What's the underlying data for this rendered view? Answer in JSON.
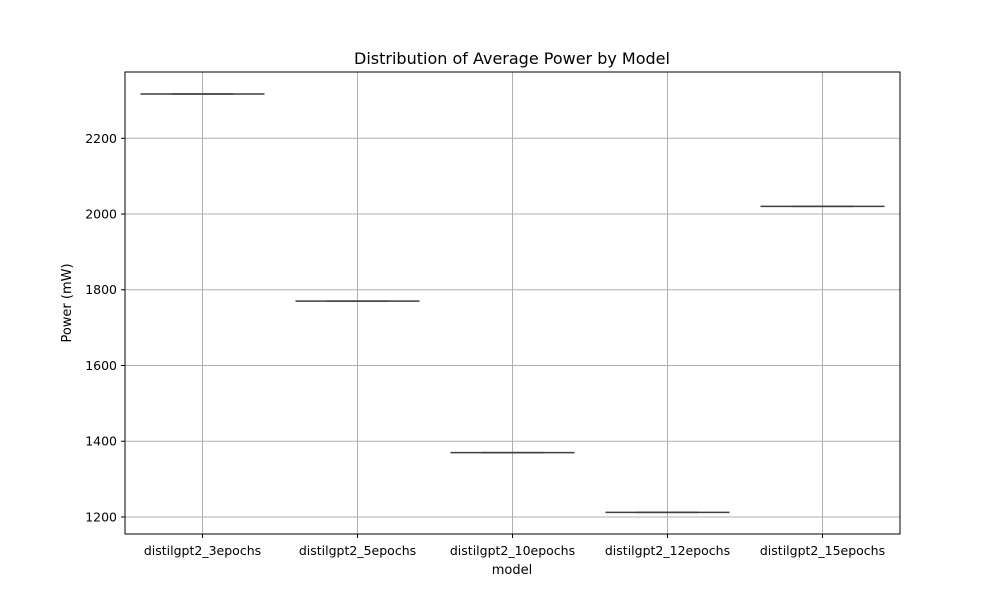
{
  "chart_data": {
    "type": "box",
    "title": "Distribution of Average Power by Model",
    "xlabel": "model",
    "ylabel": "Power (mW)",
    "categories": [
      "distilgpt2_3epochs",
      "distilgpt2_5epochs",
      "distilgpt2_10epochs",
      "distilgpt2_12epochs",
      "distilgpt2_15epochs"
    ],
    "values": [
      2317,
      1770,
      1370,
      1212,
      2020
    ],
    "ylim": [
      1155,
      2375
    ],
    "yticks": [
      1200,
      1400,
      1600,
      1800,
      2000,
      2200
    ],
    "grid": true,
    "colors": {
      "box_line": "#3f3f3f",
      "grid": "#b0b0b0",
      "frame": "#000000"
    }
  }
}
